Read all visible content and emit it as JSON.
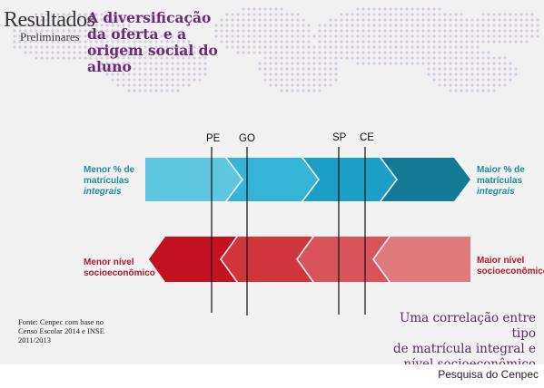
{
  "brand": {
    "main": "Resultados",
    "sub": "Preliminares"
  },
  "headline": "A diversificação da oferta e a origem social do aluno",
  "teal_arrow": {
    "left_label_1": "Menor % de",
    "left_label_2": "matrículas",
    "left_label_3": "integrais",
    "right_label_1": "Maior % de",
    "right_label_2": "matrículas",
    "right_label_3": "integrais",
    "colors": [
      "#5ec7e0",
      "#34b4d6",
      "#1c9fc6",
      "#137a96"
    ]
  },
  "red_arrow": {
    "left_label_1": "Menor nível",
    "left_label_2": "socioeconômico",
    "right_label_1": "Maior nível",
    "right_label_2": "socioeconômico",
    "colors": [
      "#c4111f",
      "#d0353b",
      "#d9545a",
      "#e07a7d"
    ]
  },
  "states": [
    "PE",
    "GO",
    "SP",
    "CE"
  ],
  "source_note": [
    "Fonte: Cenpec com base no",
    "Censo Escolar 2014 e INSE",
    "2011/2013"
  ],
  "summary": [
    "Uma correlação entre tipo",
    "de matrícula integral e",
    "nível socioeconômico"
  ],
  "caption": "Pesquisa do Cenpec",
  "colors": {
    "headline": "#6b2a7a",
    "map_dots": "#d7cbe0"
  }
}
